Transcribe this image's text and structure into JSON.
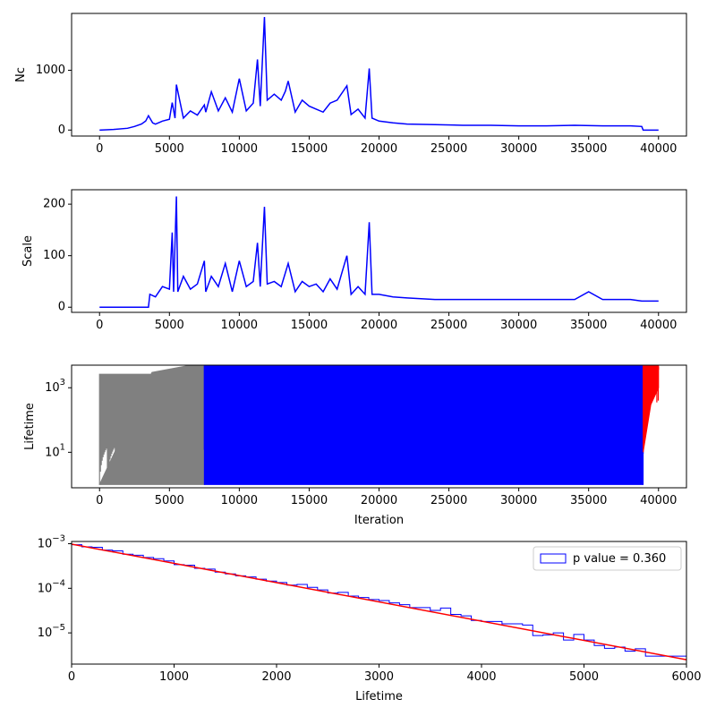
{
  "chart_data": [
    {
      "id": "nc",
      "type": "line",
      "ylabel": "Nc",
      "xlabel": "",
      "xlim": [
        -2000,
        42000
      ],
      "ylim": [
        -100,
        1950
      ],
      "xticks": [
        0,
        5000,
        10000,
        15000,
        20000,
        25000,
        30000,
        35000,
        40000
      ],
      "yticks": [
        0,
        1000
      ],
      "yscale": "linear",
      "series": [
        {
          "color": "#0000ff",
          "x": [
            0,
            1000,
            2000,
            2500,
            3000,
            3300,
            3500,
            3800,
            4000,
            4500,
            5000,
            5200,
            5400,
            5500,
            6000,
            6500,
            7000,
            7500,
            7600,
            8000,
            8500,
            9000,
            9500,
            10000,
            10500,
            11000,
            11300,
            11500,
            11800,
            12000,
            12500,
            13000,
            13300,
            13500,
            14000,
            14500,
            15000,
            15500,
            16000,
            16500,
            17000,
            17700,
            18000,
            18500,
            19000,
            19300,
            19500,
            20000,
            21000,
            22000,
            24000,
            26000,
            28000,
            30000,
            32000,
            34000,
            36000,
            38000,
            38800,
            38900,
            40000
          ],
          "values": [
            0,
            10,
            30,
            60,
            100,
            150,
            240,
            120,
            100,
            150,
            180,
            460,
            200,
            760,
            200,
            320,
            250,
            420,
            300,
            640,
            320,
            540,
            300,
            860,
            320,
            450,
            1180,
            400,
            1890,
            500,
            600,
            500,
            650,
            820,
            300,
            500,
            400,
            350,
            300,
            450,
            500,
            740,
            260,
            350,
            200,
            1030,
            200,
            150,
            120,
            100,
            90,
            80,
            80,
            70,
            70,
            80,
            70,
            70,
            60,
            0,
            0
          ]
        }
      ]
    },
    {
      "id": "scale",
      "type": "line",
      "ylabel": "Scale",
      "xlabel": "",
      "xlim": [
        -2000,
        42000
      ],
      "ylim": [
        -10,
        228
      ],
      "xticks": [
        0,
        5000,
        10000,
        15000,
        20000,
        25000,
        30000,
        35000,
        40000
      ],
      "yticks": [
        0,
        100,
        200
      ],
      "yscale": "linear",
      "series": [
        {
          "color": "#0000ff",
          "x": [
            0,
            3500,
            3600,
            4000,
            4500,
            5000,
            5200,
            5300,
            5500,
            5600,
            6000,
            6500,
            7000,
            7500,
            7600,
            8000,
            8500,
            9000,
            9500,
            10000,
            10500,
            11000,
            11300,
            11500,
            11800,
            12000,
            12500,
            13000,
            13500,
            14000,
            14500,
            15000,
            15500,
            16000,
            16500,
            17000,
            17700,
            18000,
            18500,
            19000,
            19300,
            19500,
            20000,
            21000,
            22000,
            24000,
            26000,
            28000,
            30000,
            32000,
            34000,
            35000,
            36000,
            38000,
            38800,
            40000
          ],
          "values": [
            0,
            0,
            25,
            20,
            40,
            35,
            145,
            30,
            215,
            30,
            60,
            35,
            45,
            90,
            30,
            60,
            40,
            85,
            30,
            90,
            40,
            50,
            125,
            40,
            195,
            45,
            50,
            40,
            85,
            30,
            50,
            40,
            45,
            30,
            55,
            35,
            100,
            25,
            40,
            25,
            165,
            25,
            25,
            20,
            18,
            15,
            15,
            15,
            15,
            15,
            15,
            30,
            15,
            15,
            12,
            12
          ]
        }
      ]
    },
    {
      "id": "lifetime",
      "type": "area",
      "ylabel": "Lifetime",
      "xlabel": "Iteration",
      "xlim": [
        -2000,
        42000
      ],
      "ylim_log10": [
        -0.1,
        3.7
      ],
      "xticks": [
        0,
        5000,
        10000,
        15000,
        20000,
        25000,
        30000,
        35000,
        40000
      ],
      "yticks": [
        "10^1",
        "10^3"
      ],
      "yscale": "log",
      "series": [
        {
          "color": "#808080",
          "x_range": [
            0,
            7500
          ],
          "upper": [
            1,
            3000,
            6000
          ],
          "lower": [
            1,
            1,
            1
          ]
        },
        {
          "color": "#0000ff",
          "x_range": [
            7500,
            38900
          ],
          "upper": [
            6000,
            6000,
            6000
          ],
          "lower": [
            1,
            1,
            1
          ]
        },
        {
          "color": "#ff0000",
          "x_range": [
            38900,
            40000
          ],
          "upper": [
            6000,
            5000,
            6000
          ],
          "lower": [
            10,
            300,
            1000
          ]
        }
      ]
    },
    {
      "id": "hist",
      "type": "line",
      "ylabel": "",
      "xlabel": "Lifetime",
      "xlim": [
        0,
        6000
      ],
      "ylim_log10": [
        -5.7,
        -2.95
      ],
      "xticks": [
        0,
        1000,
        2000,
        3000,
        4000,
        5000,
        6000
      ],
      "yticks": [
        "10^-3",
        "10^-4",
        "10^-5"
      ],
      "yscale": "log",
      "legend": {
        "label": "p value = 0.360",
        "placement": "upper right"
      },
      "series": [
        {
          "type": "step-histogram",
          "color": "#0000ff",
          "bin_width": 100,
          "values": [
            0.00095,
            0.00085,
            0.00083,
            0.00072,
            0.00069,
            0.00058,
            0.00055,
            0.00049,
            0.00046,
            0.00041,
            0.00034,
            0.00033,
            0.00028,
            0.00027,
            0.00023,
            0.00021,
            0.00019,
            0.00018,
            0.00016,
            0.000145,
            0.000135,
            0.000118,
            0.000122,
            0.000105,
            9.2e-05,
            7.8e-05,
            8.1e-05,
            6.7e-05,
            6.2e-05,
            5.6e-05,
            5.3e-05,
            4.7e-05,
            4.3e-05,
            3.7e-05,
            3.7e-05,
            3.2e-05,
            3.6e-05,
            2.6e-05,
            2.4e-05,
            1.9e-05,
            1.8e-05,
            1.8e-05,
            1.6e-05,
            1.6e-05,
            1.5e-05,
            8.7e-06,
            9e-06,
            1e-05,
            6.9e-06,
            9.2e-06,
            6.9e-06,
            5.2e-06,
            4.5e-06,
            4.8e-06,
            3.9e-06,
            4.4e-06,
            3e-06,
            3e-06,
            3e-06,
            3e-06
          ]
        },
        {
          "type": "fit",
          "color": "#ff0000",
          "x": [
            0,
            6000
          ],
          "values": [
            0.00098,
            2.5e-06
          ]
        }
      ]
    }
  ]
}
